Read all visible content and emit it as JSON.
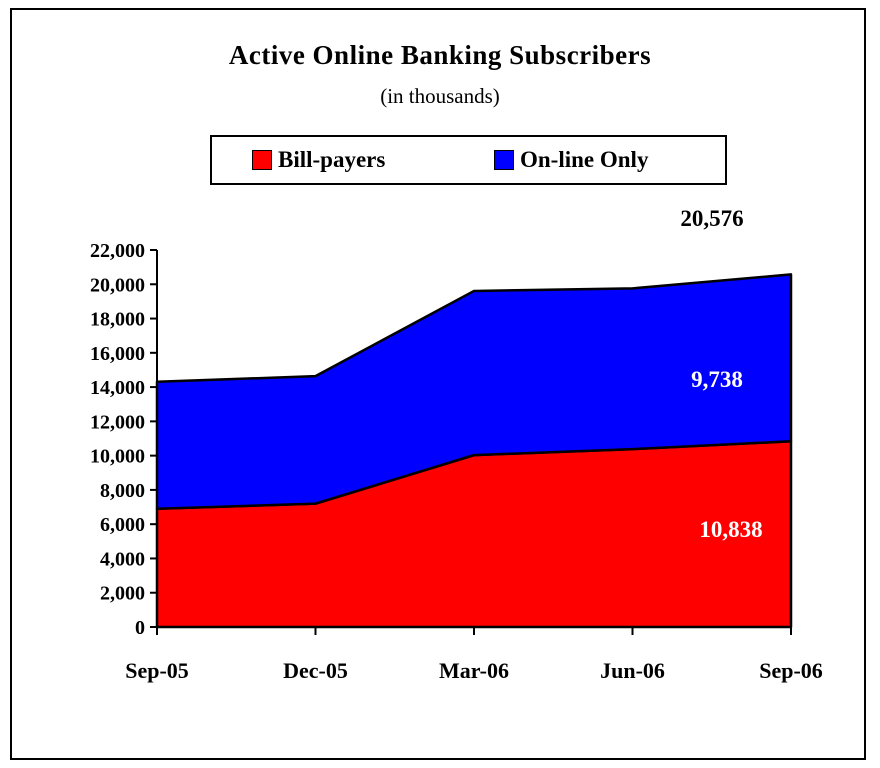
{
  "chart_data": {
    "type": "area",
    "stacked": true,
    "title": "Active Online Banking Subscribers",
    "subtitle": "(in thousands)",
    "xlabel": "",
    "ylabel": "",
    "categories": [
      "Sep-05",
      "Dec-05",
      "Mar-06",
      "Jun-06",
      "Sep-06"
    ],
    "series": [
      {
        "name": "Bill-payers",
        "color": "#ff0000",
        "values": [
          6900,
          7200,
          10030,
          10380,
          10838
        ]
      },
      {
        "name": "On-line Only",
        "color": "#0000ff",
        "values": [
          7410,
          7440,
          9580,
          9380,
          9738
        ]
      }
    ],
    "ylim": [
      0,
      22000
    ],
    "yticks": [
      "0",
      "2,000",
      "4,000",
      "6,000",
      "8,000",
      "10,000",
      "12,000",
      "14,000",
      "16,000",
      "18,000",
      "20,000",
      "22,000"
    ],
    "annotations": {
      "total_label": "20,576",
      "online_label": "9,738",
      "billpayers_label": "10,838"
    },
    "legend_position": "top",
    "grid": false
  }
}
